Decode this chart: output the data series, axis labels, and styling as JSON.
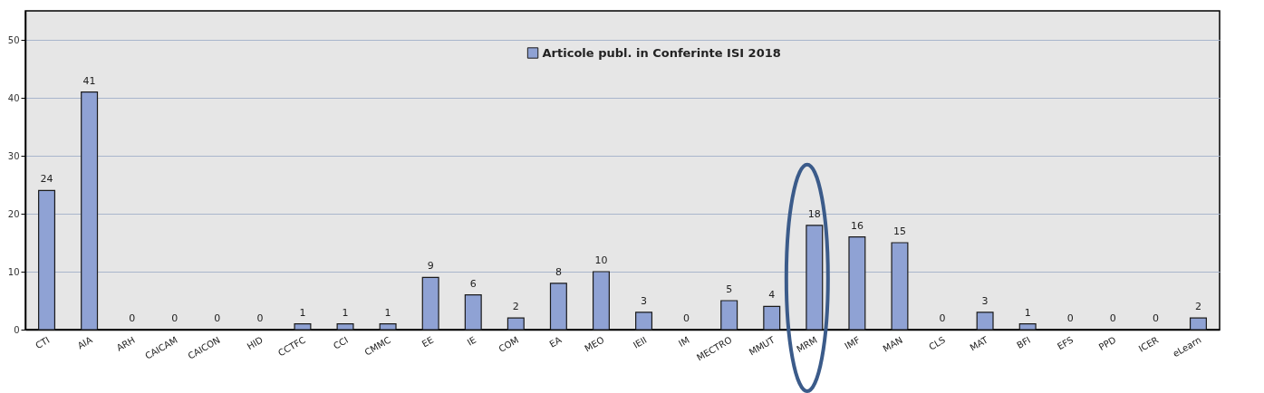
{
  "chart_data": {
    "type": "bar",
    "categories": [
      "CTI",
      "AIA",
      "ARH",
      "CAICAM",
      "CAICON",
      "HID",
      "CCTFC",
      "CCI",
      "CMMC",
      "EE",
      "IE",
      "COM",
      "EA",
      "MEO",
      "IEII",
      "IM",
      "MECTRO",
      "MMUT",
      "MRM",
      "IMF",
      "MAN",
      "CLS",
      "MAT",
      "BFI",
      "EFS",
      "PPD",
      "ICER",
      "eLearn"
    ],
    "series": [
      {
        "name": "Articole publ. in Conferinte ISI 2018",
        "color": "#8fa2d4",
        "values": [
          24,
          41,
          0,
          0,
          0,
          0,
          1,
          1,
          1,
          9,
          6,
          2,
          8,
          10,
          3,
          0,
          5,
          4,
          18,
          16,
          15,
          0,
          3,
          1,
          0,
          0,
          0,
          2
        ]
      }
    ],
    "ylim": [
      0,
      55
    ],
    "yticks": [
      0,
      10,
      20,
      30,
      40,
      50
    ],
    "grid": "y",
    "legend": "top",
    "data_labels": true
  }
}
